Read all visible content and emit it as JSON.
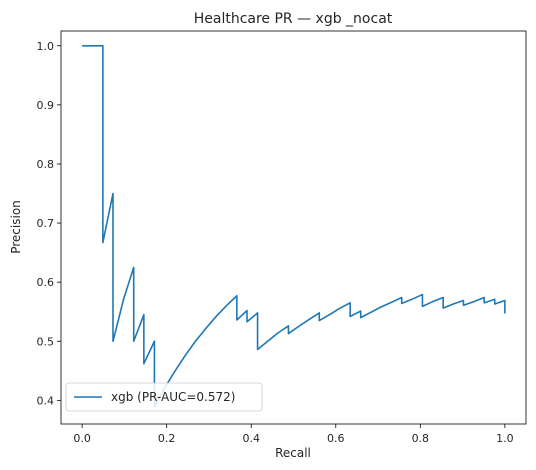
{
  "chart_data": {
    "type": "line",
    "title": "Healthcare PR — xgb _nocat",
    "xlabel": "Recall",
    "ylabel": "Precision",
    "xlim": [
      -0.05,
      1.05
    ],
    "ylim": [
      0.36,
      1.025
    ],
    "xticks": [
      0.0,
      0.2,
      0.4,
      0.6,
      0.8,
      1.0
    ],
    "xtick_labels": [
      "0.0",
      "0.2",
      "0.4",
      "0.6",
      "0.8",
      "1.0"
    ],
    "yticks": [
      0.4,
      0.5,
      0.6,
      0.7,
      0.8,
      0.9,
      1.0
    ],
    "ytick_labels": [
      "0.4",
      "0.5",
      "0.6",
      "0.7",
      "0.8",
      "0.9",
      "1.0"
    ],
    "grid": false,
    "legend_position": "lower-left",
    "series": [
      {
        "name": "xgb (PR-AUC=0.572)",
        "color": "#1f77b4",
        "x": [
          0.0,
          0.049,
          0.049,
          0.073,
          0.073,
          0.098,
          0.122,
          0.122,
          0.146,
          0.146,
          0.171,
          0.171,
          0.195,
          0.22,
          0.244,
          0.268,
          0.293,
          0.317,
          0.341,
          0.366,
          0.366,
          0.39,
          0.39,
          0.415,
          0.415,
          0.439,
          0.463,
          0.488,
          0.488,
          0.512,
          0.537,
          0.561,
          0.561,
          0.585,
          0.61,
          0.634,
          0.634,
          0.659,
          0.659,
          0.683,
          0.707,
          0.732,
          0.756,
          0.756,
          0.78,
          0.805,
          0.805,
          0.829,
          0.854,
          0.854,
          0.878,
          0.902,
          0.902,
          0.927,
          0.951,
          0.951,
          0.976,
          0.976,
          1.0,
          1.0
        ],
        "y": [
          1.0,
          1.0,
          0.667,
          0.75,
          0.5,
          0.571,
          0.625,
          0.5,
          0.545,
          0.462,
          0.5,
          0.389,
          0.421,
          0.45,
          0.476,
          0.5,
          0.522,
          0.542,
          0.56,
          0.577,
          0.536,
          0.552,
          0.533,
          0.548,
          0.486,
          0.5,
          0.514,
          0.526,
          0.513,
          0.525,
          0.537,
          0.548,
          0.535,
          0.545,
          0.556,
          0.565,
          0.542,
          0.551,
          0.54,
          0.549,
          0.558,
          0.566,
          0.574,
          0.564,
          0.571,
          0.579,
          0.559,
          0.567,
          0.574,
          0.556,
          0.563,
          0.569,
          0.561,
          0.567,
          0.574,
          0.565,
          0.571,
          0.563,
          0.569,
          0.547
        ]
      }
    ]
  }
}
